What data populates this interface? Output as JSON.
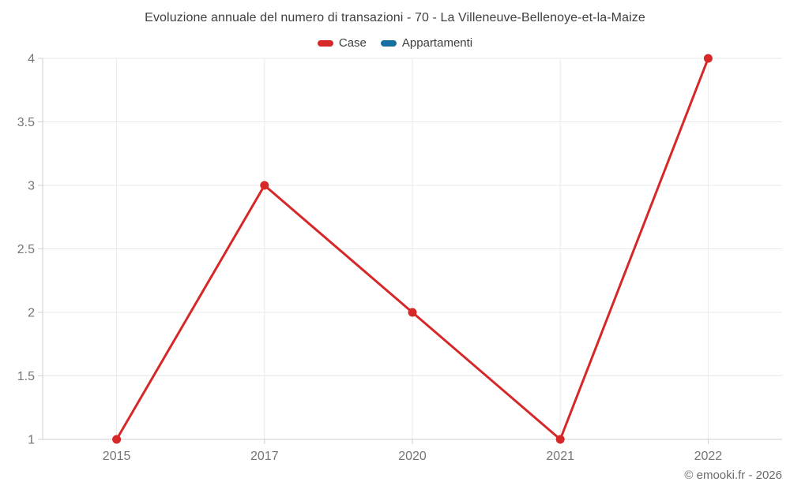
{
  "chart": {
    "title": "Evoluzione annuale del numero di transazioni - 70 - La Villeneuve-Bellenoye-et-la-Maize"
  },
  "footer": {
    "copyright": "© emooki.fr - 2026"
  },
  "chart_data": {
    "type": "line",
    "title": "Evoluzione annuale del numero di transazioni - 70 - La Villeneuve-Bellenoye-et-la-Maize",
    "categories": [
      "2015",
      "2017",
      "2020",
      "2021",
      "2022"
    ],
    "series": [
      {
        "name": "Case",
        "color": "#d62828",
        "marker": "circle",
        "values": [
          1,
          3,
          2,
          1,
          4
        ]
      },
      {
        "name": "Appartamenti",
        "color": "#176ea0",
        "marker": "circle",
        "values": []
      }
    ],
    "xlabel": "",
    "ylabel": "",
    "ylim": [
      1,
      4
    ],
    "yticks": [
      1,
      1.5,
      2,
      2.5,
      3,
      3.5,
      4
    ],
    "grid": true,
    "legend_position": "top"
  }
}
